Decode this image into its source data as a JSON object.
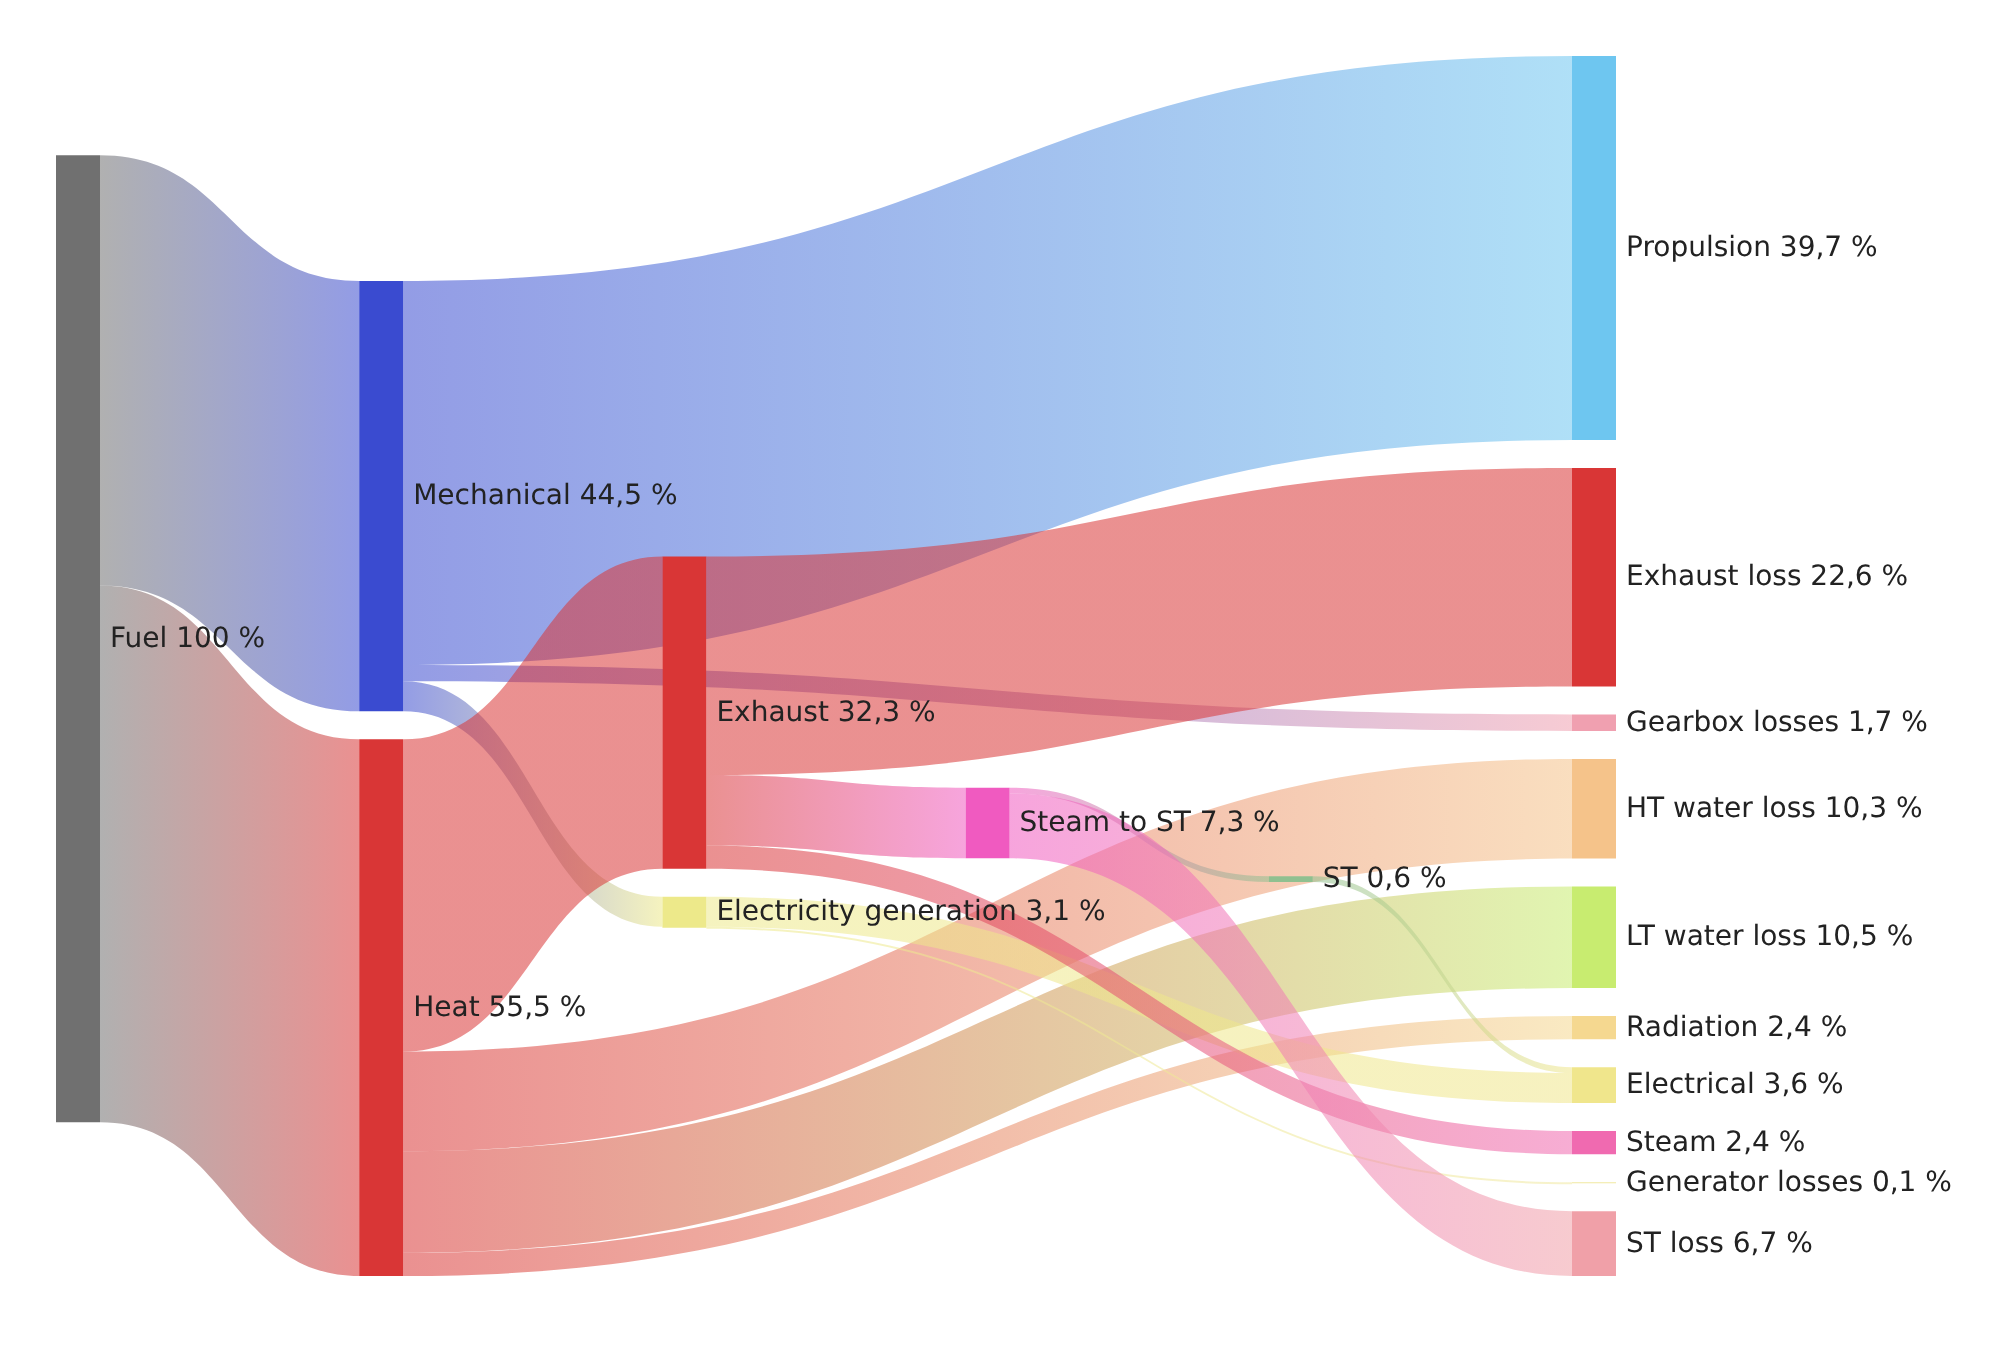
{
  "chart_data": {
    "type": "other",
    "categories": [
      "Fuel",
      "Mechanical",
      "Heat",
      "Propulsion",
      "Electricity generation",
      "Gearbox losses",
      "Exhaust",
      "HT water loss",
      "LT water loss",
      "Radiation",
      "Generator losses",
      "Electrical",
      "Steam",
      "Steam to ST",
      "Exhaust loss",
      "ST",
      "ST loss"
    ],
    "values": [
      100,
      44.5,
      55.5,
      39.7,
      3.1,
      1.7,
      32.3,
      10.3,
      10.5,
      2.4,
      0.1,
      3.6,
      2.4,
      7.3,
      22.6,
      0.6,
      6.7
    ],
    "value_labels": [
      "100 %",
      "44,5 %",
      "55,5 %",
      "39,7 %",
      "3,1 %",
      "1,7 %",
      "32,3 %",
      "10,3 %",
      "10,5 %",
      "2,4 %",
      "0,1 %",
      "3,6 %",
      "2,4 %",
      "7,3 %",
      "22,6 %",
      "0,6 %",
      "6,7 %"
    ],
    "colors": [
      "#707070",
      "#3a4bd0",
      "#d93636",
      "#6ec6f0",
      "#ede98a",
      "#f0a0b0",
      "#d93636",
      "#f5c38a",
      "#c8ec70",
      "#f5d890",
      "#f0e8a0",
      "#f0e68c",
      "#f06ab0",
      "#f05ac0",
      "#d93636",
      "#90c090",
      "#f0a0a8"
    ],
    "cells": [
      [
        null,
        true,
        true,
        null,
        null,
        null,
        null,
        null,
        null,
        null,
        null,
        null,
        null,
        null,
        null,
        null,
        null
      ],
      [
        null,
        null,
        null,
        true,
        true,
        true,
        null,
        null,
        null,
        null,
        null,
        null,
        null,
        null,
        null,
        null,
        null
      ],
      [
        null,
        null,
        null,
        null,
        null,
        null,
        true,
        true,
        true,
        true,
        null,
        null,
        null,
        null,
        null,
        null,
        null
      ],
      [
        null,
        null,
        null,
        null,
        null,
        null,
        null,
        null,
        null,
        null,
        null,
        null,
        null,
        null,
        null,
        null,
        null
      ],
      [
        null,
        null,
        null,
        null,
        null,
        null,
        null,
        null,
        null,
        null,
        true,
        true,
        null,
        null,
        null,
        null,
        null
      ],
      [
        null,
        null,
        null,
        null,
        null,
        null,
        null,
        null,
        null,
        null,
        null,
        null,
        null,
        null,
        null,
        null,
        null
      ],
      [
        null,
        null,
        null,
        null,
        null,
        null,
        null,
        null,
        null,
        null,
        null,
        null,
        true,
        true,
        true,
        null,
        null
      ],
      [
        null,
        null,
        null,
        null,
        null,
        null,
        null,
        null,
        null,
        null,
        null,
        null,
        null,
        null,
        null,
        null,
        null
      ],
      [
        null,
        null,
        null,
        null,
        null,
        null,
        null,
        null,
        null,
        null,
        null,
        null,
        null,
        null,
        null,
        null,
        null
      ],
      [
        null,
        null,
        null,
        null,
        null,
        null,
        null,
        null,
        null,
        null,
        null,
        null,
        null,
        null,
        null,
        null,
        null
      ],
      [
        null,
        null,
        null,
        null,
        null,
        null,
        null,
        null,
        null,
        null,
        null,
        null,
        null,
        null,
        null,
        null,
        null
      ],
      [
        null,
        null,
        null,
        null,
        null,
        null,
        null,
        null,
        null,
        null,
        null,
        null,
        null,
        null,
        null,
        null,
        null
      ],
      [
        null,
        null,
        null,
        null,
        null,
        null,
        null,
        null,
        null,
        null,
        null,
        null,
        null,
        null,
        null,
        null,
        null
      ],
      [
        null,
        null,
        null,
        null,
        null,
        null,
        null,
        null,
        null,
        null,
        null,
        null,
        null,
        null,
        null,
        true,
        true
      ],
      [
        null,
        null,
        null,
        null,
        null,
        null,
        null,
        null,
        null,
        null,
        null,
        null,
        null,
        null,
        null,
        null,
        null
      ],
      [
        null,
        null,
        null,
        null,
        null,
        null,
        null,
        null,
        null,
        null,
        null,
        true,
        null,
        null,
        null,
        null,
        null
      ],
      [
        null,
        null,
        null,
        null,
        null,
        null,
        null,
        null,
        null,
        null,
        null,
        null,
        null,
        null,
        null,
        null,
        null
      ]
    ]
  }
}
